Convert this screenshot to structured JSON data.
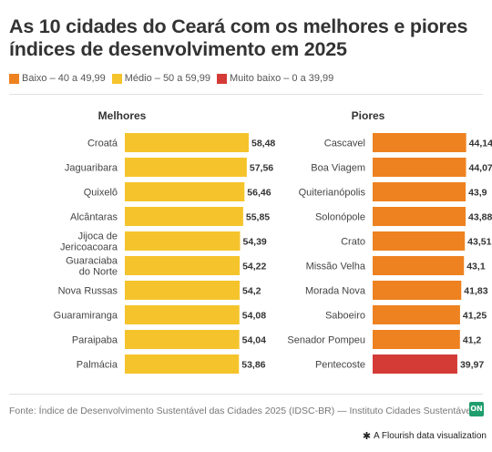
{
  "title": "As 10 cidades do Ceará com os melhores e piores índices de desenvolvimento em 2025",
  "legend": [
    {
      "label": "Baixo – 40 a 49,99",
      "color": "#ee8220"
    },
    {
      "label": "Médio – 50 a 59,99",
      "color": "#f5c42c"
    },
    {
      "label": "Muito baixo – 0 a 39,99",
      "color": "#d43b36"
    }
  ],
  "source": "Fonte: Índice de Desenvolvimento Sustentável das Cidades 2025 (IDSC-BR) — Instituto Cidades Sustentáveis",
  "logo_text": "ON",
  "flourish_label": "A Flourish data visualization",
  "chart_data": [
    {
      "type": "bar",
      "title": "Melhores",
      "xlim": [
        0,
        100
      ],
      "categories": [
        "Croatá",
        "Jaguaribara",
        "Quixelô",
        "Alcântaras",
        "Jijoca de Jericoacoara",
        "Guaraciaba do Norte",
        "Nova Russas",
        "Guaramiranga",
        "Paraipaba",
        "Palmácia"
      ],
      "values": [
        58.48,
        57.56,
        56.46,
        55.85,
        54.39,
        54.22,
        54.2,
        54.08,
        54.04,
        53.86
      ],
      "value_labels": [
        "58,48",
        "57,56",
        "56,46",
        "55,85",
        "54,39",
        "54,22",
        "54,2",
        "54,08",
        "54,04",
        "53,86"
      ],
      "colors": [
        "#f5c42c",
        "#f5c42c",
        "#f5c42c",
        "#f5c42c",
        "#f5c42c",
        "#f5c42c",
        "#f5c42c",
        "#f5c42c",
        "#f5c42c",
        "#f5c42c"
      ]
    },
    {
      "type": "bar",
      "title": "Piores",
      "xlim": [
        0,
        100
      ],
      "categories": [
        "Cascavel",
        "Boa Viagem",
        "Quiterianópolis",
        "Solonópole",
        "Crato",
        "Missão Velha",
        "Morada Nova",
        "Saboeiro",
        "Senador Pompeu",
        "Pentecoste"
      ],
      "values": [
        44.14,
        44.07,
        43.9,
        43.88,
        43.51,
        43.1,
        41.83,
        41.25,
        41.2,
        39.97
      ],
      "value_labels": [
        "44,14",
        "44,07",
        "43,9",
        "43,88",
        "43,51",
        "43,1",
        "41,83",
        "41,25",
        "41,2",
        "39,97"
      ],
      "colors": [
        "#ee8220",
        "#ee8220",
        "#ee8220",
        "#ee8220",
        "#ee8220",
        "#ee8220",
        "#ee8220",
        "#ee8220",
        "#ee8220",
        "#d43b36"
      ]
    }
  ]
}
